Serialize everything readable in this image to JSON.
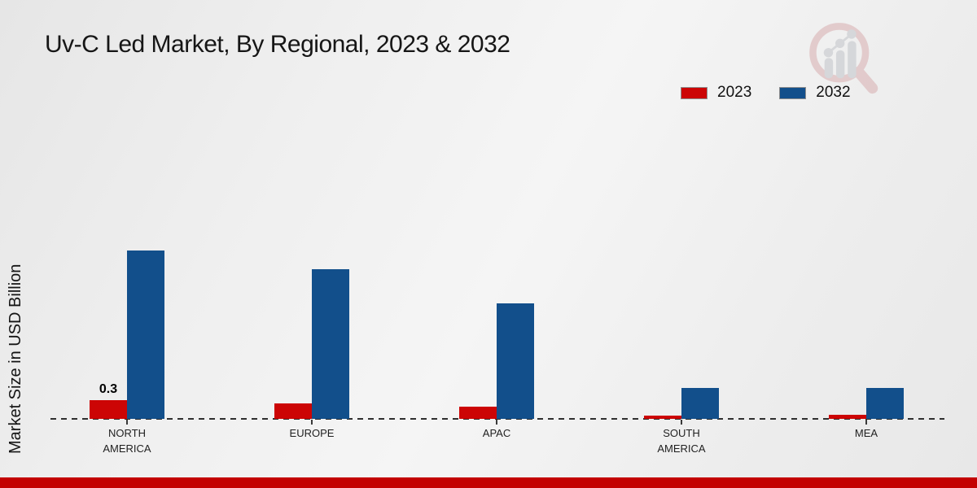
{
  "header": {
    "title": "Uv-C Led Market, By Regional, 2023 & 2032"
  },
  "legend": {
    "items": [
      {
        "label": "2023",
        "color": "#cc0505"
      },
      {
        "label": "2032",
        "color": "#124f8b"
      }
    ]
  },
  "chart_data": {
    "type": "bar",
    "title": "Uv-C Led Market, By Regional, 2023 & 2032",
    "categories": [
      "NORTH AMERICA",
      "EUROPE",
      "APAC",
      "SOUTH AMERICA",
      "MEA"
    ],
    "series": [
      {
        "name": "2023",
        "color": "#cc0505",
        "values": [
          0.3,
          0.25,
          0.2,
          0.05,
          0.07
        ]
      },
      {
        "name": "2032",
        "color": "#124f8b",
        "values": [
          2.7,
          2.4,
          1.85,
          0.5,
          0.5
        ]
      }
    ],
    "xlabel": "",
    "ylabel": "Market Size in USD Billion",
    "ylim": [
      0,
      3
    ],
    "grid": false,
    "legend_position": "top-right",
    "zero_line_style": "dashed",
    "annotations": [
      {
        "series": "2023",
        "category": "NORTH AMERICA",
        "text": "0.3"
      }
    ]
  },
  "footer": {
    "strip_color": "#c30101"
  },
  "watermark": {
    "ring_color": "#d6a8aa",
    "bars_color": "#bdc0c6"
  }
}
